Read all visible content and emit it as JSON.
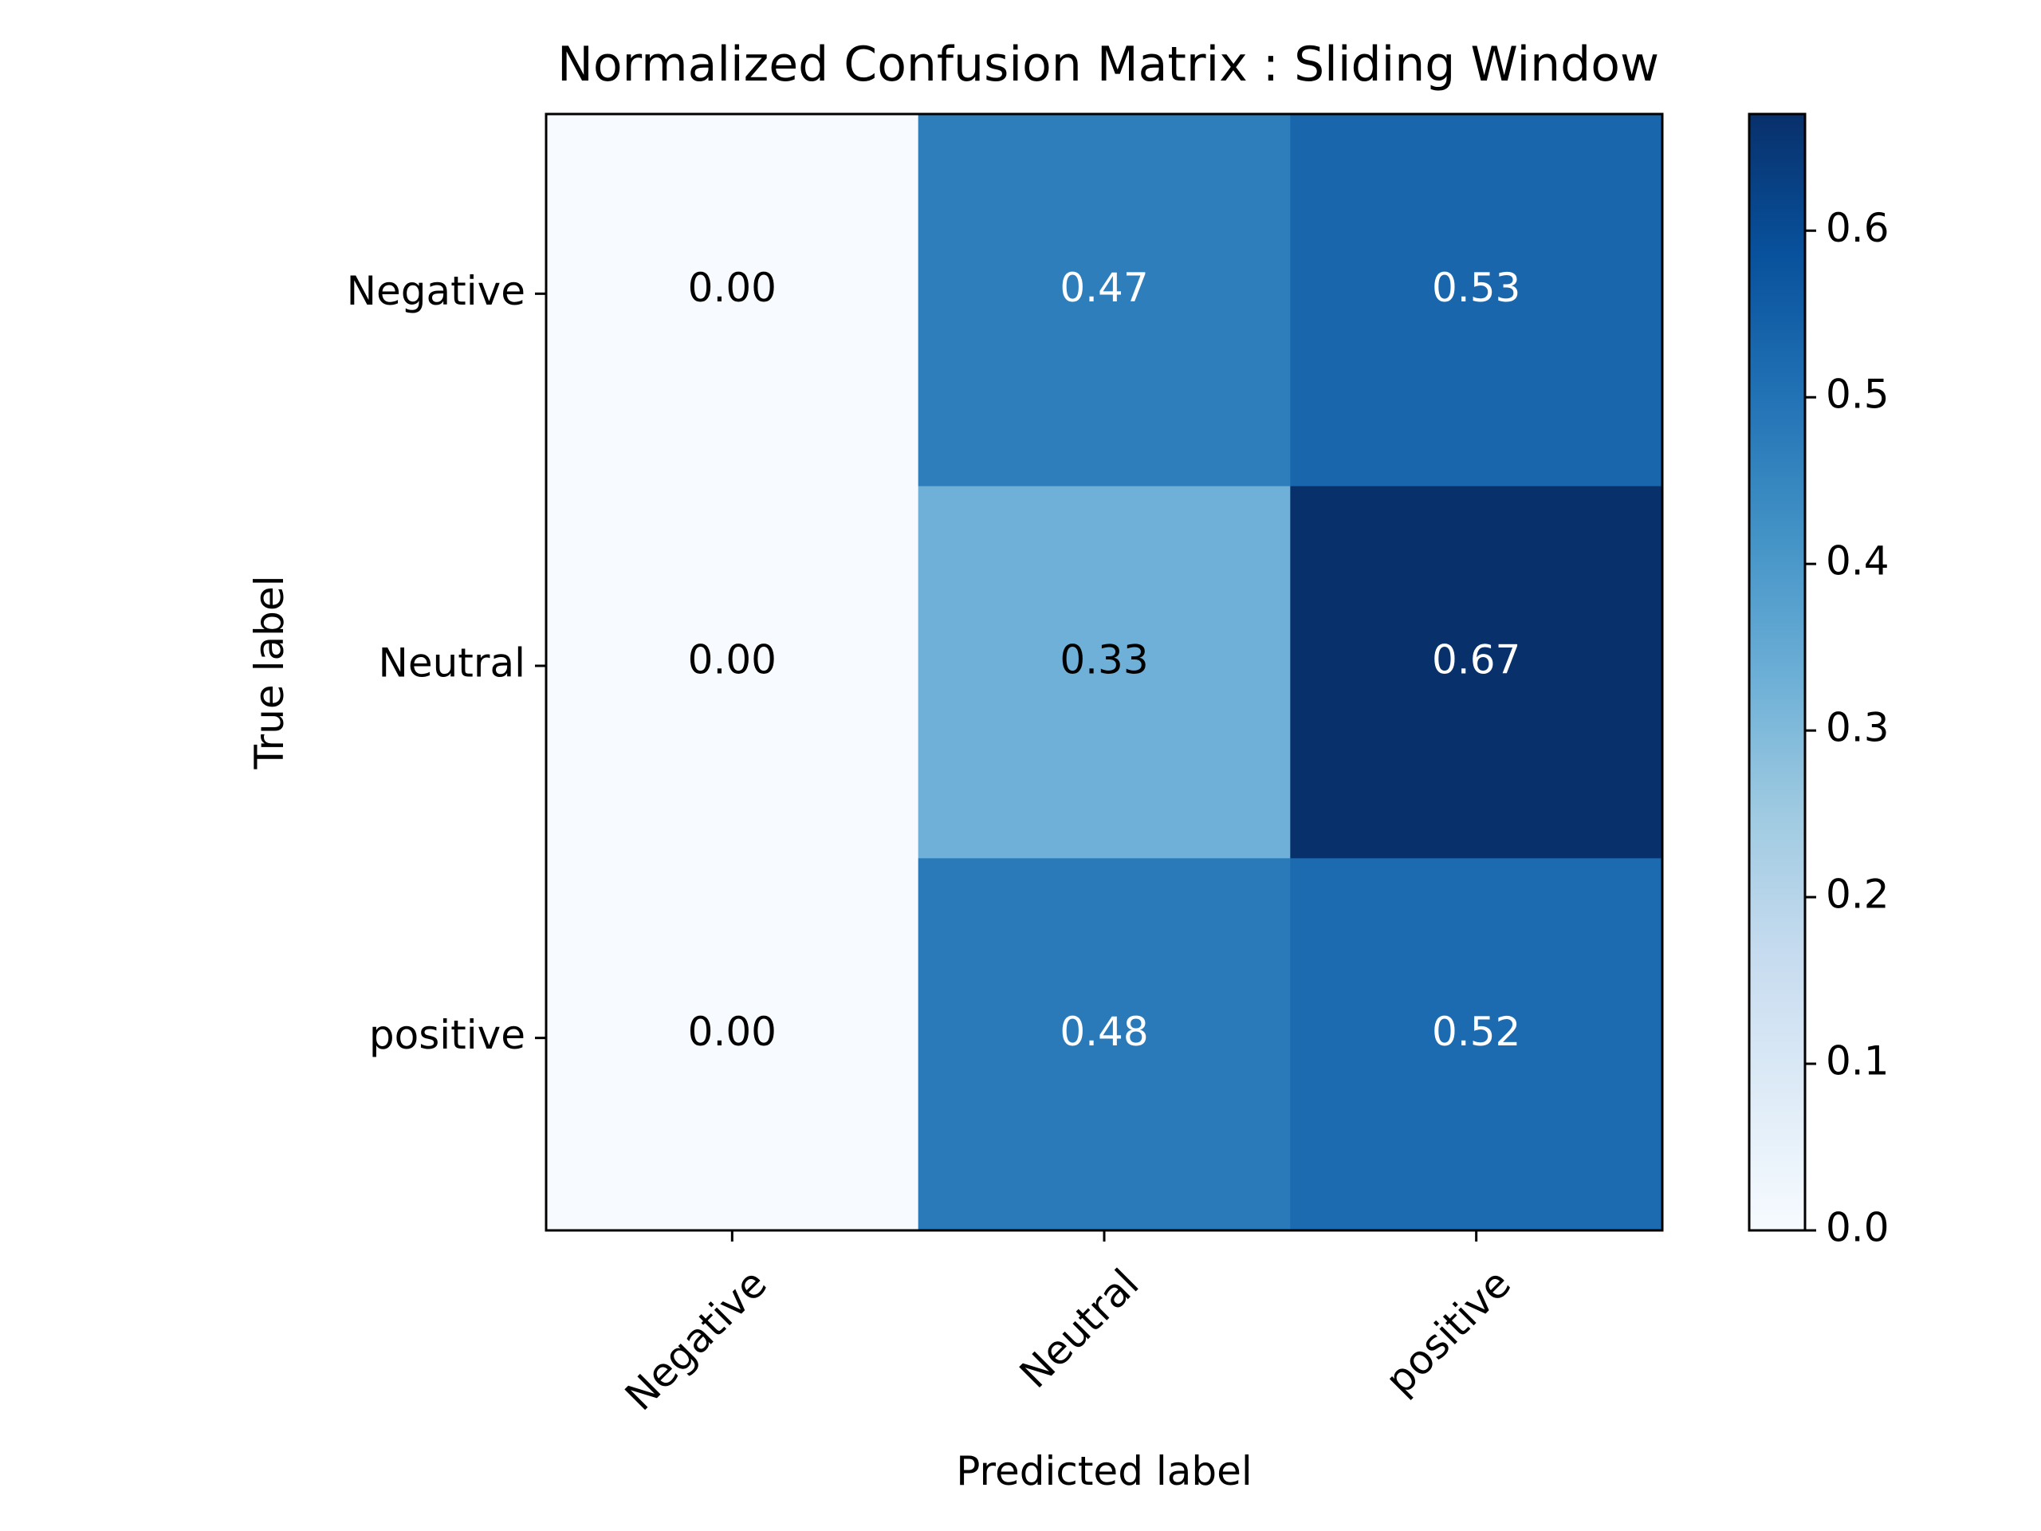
{
  "chart_data": {
    "type": "heatmap",
    "title": "Normalized Confusion Matrix : Sliding Window",
    "xlabel": "Predicted label",
    "ylabel": "True label",
    "x_categories": [
      "Negative",
      "Neutral",
      "positive"
    ],
    "y_categories": [
      "Negative",
      "Neutral",
      "positive"
    ],
    "values": [
      [
        0.0,
        0.47,
        0.53
      ],
      [
        0.0,
        0.33,
        0.67
      ],
      [
        0.0,
        0.48,
        0.52
      ]
    ],
    "value_labels": [
      [
        "0.00",
        "0.47",
        "0.53"
      ],
      [
        "0.00",
        "0.33",
        "0.67"
      ],
      [
        "0.00",
        "0.48",
        "0.52"
      ]
    ],
    "colormap": "Blues",
    "colorbar": {
      "range": [
        0.0,
        0.67
      ],
      "ticks": [
        0.0,
        0.1,
        0.2,
        0.3,
        0.4,
        0.5,
        0.6
      ],
      "tick_labels": [
        "0.0",
        "0.1",
        "0.2",
        "0.3",
        "0.4",
        "0.5",
        "0.6"
      ]
    },
    "colors": {
      "text_dark": "#000000",
      "text_light": "#ffffff",
      "frame": "#000000"
    }
  }
}
